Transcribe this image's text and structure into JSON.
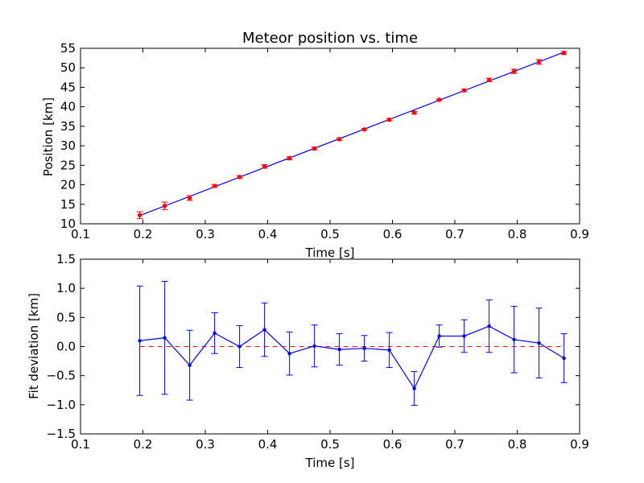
{
  "chart_data": [
    {
      "type": "scatter",
      "title": "Meteor position vs. time",
      "xlabel": "Time [s]",
      "ylabel": "Position [km]",
      "xlim": [
        0.1,
        0.9
      ],
      "ylim": [
        10,
        55
      ],
      "xticks": [
        "0.1",
        "0.2",
        "0.3",
        "0.4",
        "0.5",
        "0.6",
        "0.7",
        "0.8",
        "0.9"
      ],
      "yticks": [
        "10",
        "15",
        "20",
        "25",
        "30",
        "35",
        "40",
        "45",
        "50",
        "55"
      ],
      "series": [
        {
          "x": [
            0.195,
            0.235,
            0.275,
            0.315,
            0.355,
            0.395,
            0.435,
            0.475,
            0.515,
            0.555,
            0.595,
            0.635,
            0.675,
            0.715,
            0.755,
            0.795,
            0.835,
            0.875
          ],
          "y": [
            12.2,
            14.6,
            16.6,
            19.7,
            22.0,
            24.7,
            26.8,
            29.3,
            31.7,
            34.2,
            36.7,
            38.5,
            41.8,
            44.2,
            46.9,
            49.1,
            51.5,
            53.8
          ],
          "yerr": [
            0.9,
            0.95,
            0.6,
            0.35,
            0.35,
            0.45,
            0.38,
            0.35,
            0.28,
            0.22,
            0.3,
            0.28,
            0.2,
            0.28,
            0.45,
            0.55,
            0.6,
            0.4
          ],
          "color": "#ff0000",
          "marker_color": "#ff0000"
        }
      ],
      "fit_line": {
        "x": [
          0.195,
          0.875
        ],
        "y": [
          12.1,
          54.0
        ],
        "color": "#0000ff"
      }
    },
    {
      "type": "line",
      "xlabel": "Time [s]",
      "ylabel": "Fit deviation [km]",
      "xlim": [
        0.1,
        0.9
      ],
      "ylim": [
        -1.5,
        1.5
      ],
      "xticks": [
        "0.1",
        "0.2",
        "0.3",
        "0.4",
        "0.5",
        "0.6",
        "0.7",
        "0.8",
        "0.9"
      ],
      "yticks": [
        "1.5",
        "1.0",
        "0.5",
        "0.0",
        "−0.5",
        "−1.0",
        "−1.5"
      ],
      "yticks_values": [
        1.5,
        1.0,
        0.5,
        0.0,
        -0.5,
        -1.0,
        -1.5
      ],
      "series": [
        {
          "x": [
            0.195,
            0.235,
            0.275,
            0.315,
            0.355,
            0.395,
            0.435,
            0.475,
            0.515,
            0.555,
            0.595,
            0.635,
            0.675,
            0.715,
            0.755,
            0.795,
            0.835,
            0.875
          ],
          "y": [
            0.1,
            0.15,
            -0.32,
            0.23,
            0.0,
            0.29,
            -0.12,
            0.01,
            -0.05,
            -0.03,
            -0.06,
            -0.72,
            0.18,
            0.18,
            0.35,
            0.12,
            0.06,
            -0.2
          ],
          "yerr": [
            0.94,
            0.97,
            0.6,
            0.35,
            0.36,
            0.46,
            0.37,
            0.36,
            0.27,
            0.22,
            0.3,
            0.29,
            0.19,
            0.28,
            0.45,
            0.57,
            0.6,
            0.42
          ],
          "color": "#0000ff"
        }
      ],
      "reference_line": {
        "y": 0.0,
        "color": "#ff0000",
        "style": "dashed"
      }
    }
  ]
}
